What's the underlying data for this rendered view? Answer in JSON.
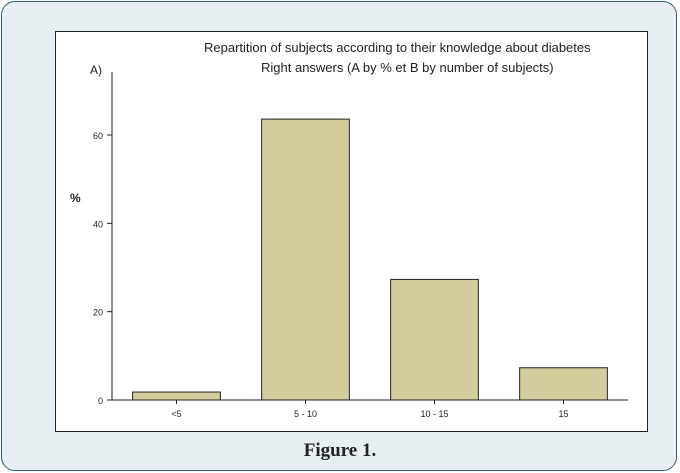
{
  "figure": {
    "caption": "Figure 1."
  },
  "chart_data": {
    "type": "bar",
    "title": "Repartition of subjects according to their knowledge about diabetes",
    "subtitle": "Right answers (A by % et B by number of subjects)",
    "panel_label": "A)",
    "xlabel": "",
    "ylabel": "%",
    "categories": [
      "<5",
      "5 - 10",
      "10 - 15",
      "15"
    ],
    "values": [
      1.8,
      63.6,
      27.3,
      7.3
    ],
    "ylim": [
      0,
      75
    ],
    "yticks": [
      0,
      20,
      40,
      60
    ],
    "grid": false,
    "legend": "none",
    "colors": {
      "bar_fill": "#d3cc9d",
      "bar_stroke": "#222222",
      "axis": "#222222"
    }
  }
}
